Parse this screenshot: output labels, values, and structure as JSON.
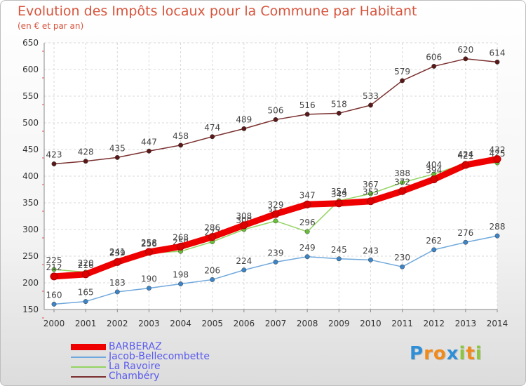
{
  "title": "Evolution des Impôts locaux pour la Commune par Habitant",
  "subtitle": "(en € et par an)",
  "logo": {
    "text": "Proxiti",
    "letters": [
      "P",
      "r",
      "o",
      "x",
      "i",
      "t",
      "i"
    ],
    "colors": [
      "#2e8fd6",
      "#f08a1c",
      "#f08a1c",
      "#2e8fd6",
      "#8cc63f",
      "#f08a1c",
      "#8cc63f"
    ]
  },
  "chart_data": {
    "type": "line",
    "title": "Evolution des Impôts locaux pour la Commune par Habitant",
    "subtitle": "(en € et par an)",
    "xlabel": "",
    "ylabel": "",
    "x": [
      "2000",
      "2001",
      "2002",
      "2003",
      "2004",
      "2005",
      "2006",
      "2007",
      "2008",
      "2009",
      "2010",
      "2011",
      "2012",
      "2013",
      "2014"
    ],
    "ylim": [
      150,
      650
    ],
    "yticks": [
      150,
      200,
      250,
      300,
      350,
      400,
      450,
      500,
      550,
      600,
      650
    ],
    "grid": true,
    "legend_position": "bottom-left",
    "series": [
      {
        "name": "BARBERAZ",
        "color": "#ee0000",
        "values": [
          212,
          216,
          239,
          258,
          268,
          286,
          308,
          329,
          347,
          349,
          353,
          372,
          394,
          421,
          432
        ]
      },
      {
        "name": "Jacob-Bellecombette",
        "color": "#6fa8dc",
        "marker": "#3d85c6",
        "values": [
          160,
          165,
          183,
          190,
          198,
          206,
          224,
          239,
          249,
          245,
          243,
          230,
          262,
          276,
          288
        ]
      },
      {
        "name": "La Ravoire",
        "color": "#93d462",
        "marker": "#6abf3a",
        "values": [
          225,
          220,
          241,
          256,
          259,
          277,
          300,
          316,
          296,
          354,
          367,
          388,
          404,
          424,
          425
        ]
      },
      {
        "name": "Chambéry",
        "color": "#7b3030",
        "marker": "#5a1818",
        "values": [
          423,
          428,
          435,
          447,
          458,
          474,
          489,
          506,
          516,
          518,
          533,
          579,
          606,
          620,
          614
        ]
      }
    ]
  }
}
